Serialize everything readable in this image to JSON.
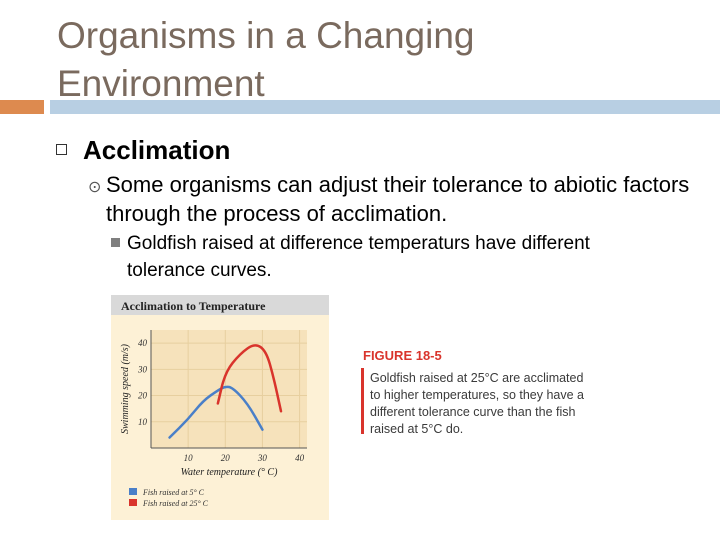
{
  "slide": {
    "title": "Organisms in a Changing Environment",
    "bullet1": "Acclimation",
    "bullet2": "Some organisms can adjust their tolerance to abiotic factors through the process of acclimation.",
    "bullet3": "Goldfish raised at difference temperaturs have different tolerance curves."
  },
  "colors": {
    "title": "#7a6a5e",
    "accent_orange": "#dd8a4f",
    "accent_blue": "#b8cfe3",
    "figure_red": "#d9342c",
    "series_blue": "#4a7fc8",
    "series_red": "#d9342c"
  },
  "figure": {
    "label": "FIGURE 18-5",
    "caption": "Goldfish raised at 25°C are acclimated to higher temperatures, so they have a different tolerance curve than the fish raised at 5°C do."
  },
  "chart_data": {
    "type": "line",
    "title": "Acclimation to Temperature",
    "xlabel": "Water temperature (° C)",
    "ylabel": "Swimming speed (m/s)",
    "xlim": [
      0,
      42
    ],
    "ylim": [
      0,
      45
    ],
    "xticks": [
      "10",
      "20",
      "30",
      "40"
    ],
    "yticks": [
      "10",
      "20",
      "30",
      "40"
    ],
    "series": [
      {
        "name": "Fish raised at 5° C",
        "color": "#4a7fc8",
        "x": [
          5,
          10,
          14,
          18,
          20,
          22,
          26,
          30
        ],
        "y": [
          4,
          11,
          18,
          22,
          23.5,
          23,
          17,
          7
        ]
      },
      {
        "name": "Fish raised at 25° C",
        "color": "#d9342c",
        "x": [
          18,
          20,
          24,
          28,
          31,
          33,
          35
        ],
        "y": [
          17,
          29,
          36,
          40,
          37,
          27,
          14
        ]
      }
    ]
  }
}
